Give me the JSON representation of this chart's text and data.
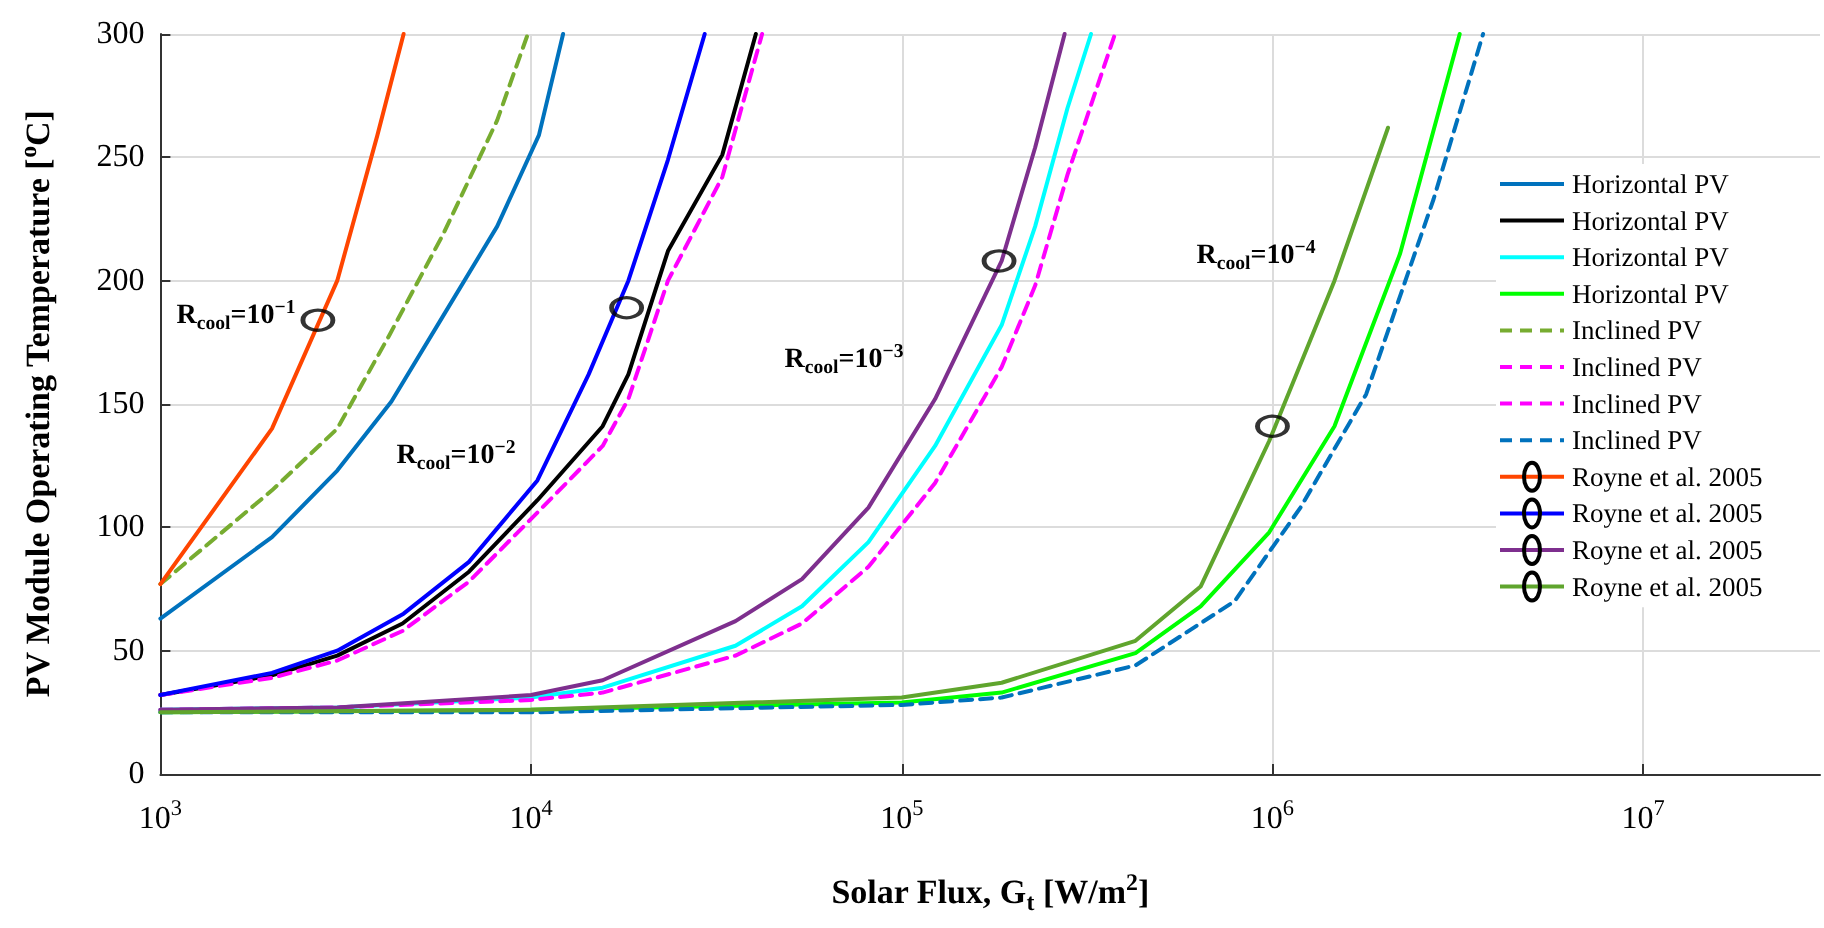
{
  "chart_data": {
    "type": "line",
    "xlabel": "Solar Flux, G$_{t}$ [W/m$^{2}$]",
    "ylabel": "PV Module Operating Temperature [$^{o}$C]",
    "log": "x",
    "xlim": [
      1000,
      30000000
    ],
    "xticks": [
      {
        "value": 1000,
        "label": "10$^{3}$"
      },
      {
        "value": 10000,
        "label": "10$^{4}$"
      },
      {
        "value": 100000,
        "label": "10$^{5}$"
      },
      {
        "value": 1000000,
        "label": "10$^{6}$"
      },
      {
        "value": 10000000,
        "label": "10$^{7}$"
      }
    ],
    "ylim": [
      0,
      300
    ],
    "yticks": [
      0,
      50,
      100,
      150,
      200,
      250,
      300
    ],
    "grid": true,
    "legend": "right",
    "marker": "none",
    "line_style": "solid",
    "annotations": [
      "R$_{cool}$=10$^{−1}$",
      "R$_{cool}$=10$^{−2}$",
      "R$_{cool}$=10$^{−3}$",
      "R$_{cool}$=10$^{−4}$"
    ],
    "series": [
      {
        "name": "Horizontal PV",
        "color": "#0072bd",
        "x": [
          1000,
          2000,
          3000,
          4200,
          5700,
          8100,
          10500,
          12200
        ],
        "values": [
          63,
          96,
          123,
          151,
          184,
          222,
          259,
          300
        ]
      },
      {
        "name": "Horizontal PV",
        "color": "#000000",
        "x": [
          1000,
          2000,
          3000,
          4500,
          6800,
          10400,
          15600,
          18300,
          23400,
          32800,
          40400
        ],
        "values": [
          32,
          40,
          48,
          61,
          82,
          111,
          141,
          162,
          212,
          251,
          300
        ]
      },
      {
        "name": "Horizontal PV",
        "color": "#00ffff",
        "x": [
          1000,
          3000,
          10000,
          15600,
          35600,
          53800,
          81300,
          123000,
          186000,
          229000,
          280000,
          324000
        ],
        "values": [
          26,
          27,
          31,
          35,
          52,
          68,
          94,
          133,
          182,
          222,
          270,
          300
        ]
      },
      {
        "name": "Horizontal PV",
        "color": "#00ff00",
        "x": [
          1000,
          10000,
          100000,
          186000,
          427000,
          640000,
          980000,
          1470000,
          2210000,
          3200000
        ],
        "values": [
          25,
          26,
          29,
          33,
          49,
          68,
          98,
          141,
          211,
          300
        ]
      },
      {
        "name": "Inclined PV",
        "color": "#77ac30",
        "line_style": "dashed",
        "x": [
          1000,
          2000,
          3000,
          4150,
          5800,
          8100,
          9800
        ],
        "values": [
          77,
          115,
          140,
          178,
          219,
          265,
          300
        ]
      },
      {
        "name": "Inclined PV",
        "color": "#ff00ff",
        "line_style": "dashed",
        "x": [
          1000,
          2000,
          3000,
          4500,
          6800,
          10400,
          15600,
          18300,
          23400,
          32800,
          42000
        ],
        "values": [
          32,
          39,
          46,
          58,
          78,
          106,
          133,
          152,
          200,
          242,
          300
        ]
      },
      {
        "name": "Inclined PV",
        "color": "#ff00ff",
        "line_style": "dashed",
        "x": [
          1000,
          3000,
          10000,
          15600,
          35600,
          53800,
          81300,
          123000,
          186000,
          229000,
          280000,
          376000
        ],
        "values": [
          26,
          27,
          30,
          33,
          48,
          61,
          84,
          118,
          165,
          198,
          243,
          300
        ]
      },
      {
        "name": "Inclined PV",
        "color": "#0072bd",
        "line_style": "dashed",
        "x": [
          1000,
          10000,
          100000,
          186000,
          427000,
          790000,
          1190000,
          1790000,
          2720000,
          3700000
        ],
        "values": [
          25,
          25,
          28,
          31,
          44,
          70,
          108,
          154,
          233,
          300
        ]
      },
      {
        "name": "Royne et al. 2005",
        "color": "#ff4500",
        "x": [
          1000,
          2000,
          3000,
          3850,
          4530
        ],
        "values": [
          77,
          140,
          200,
          259,
          300
        ]
      },
      {
        "name": "Royne et al. 2005",
        "color": "#0000ff",
        "x": [
          1000,
          2000,
          3000,
          4530,
          6800,
          10400,
          14300,
          18300,
          23400,
          29400
        ],
        "values": [
          32,
          41,
          50,
          65,
          86,
          119,
          162,
          200,
          249,
          300
        ]
      },
      {
        "name": "Royne et al. 2005",
        "color": "#7e2f8e",
        "x": [
          1000,
          3000,
          10000,
          15600,
          35600,
          53800,
          81300,
          123000,
          186000,
          229000,
          275000
        ],
        "values": [
          26,
          27,
          32,
          38,
          62,
          79,
          108,
          152,
          208,
          254,
          300
        ]
      },
      {
        "name": "Royne et al. 2005",
        "color": "#5fa52d",
        "x": [
          1000,
          10000,
          100000,
          186000,
          427000,
          640000,
          980000,
          1470000,
          2050000
        ],
        "values": [
          25,
          26,
          31,
          37,
          54,
          76,
          135,
          200,
          262
        ]
      },
      {
        "type": "scatter",
        "color": "#000000",
        "marker": "circle",
        "x": [
          2660,
          18100,
          183000,
          1000000
        ],
        "values": [
          184,
          189,
          208,
          141
        ]
      }
    ]
  }
}
